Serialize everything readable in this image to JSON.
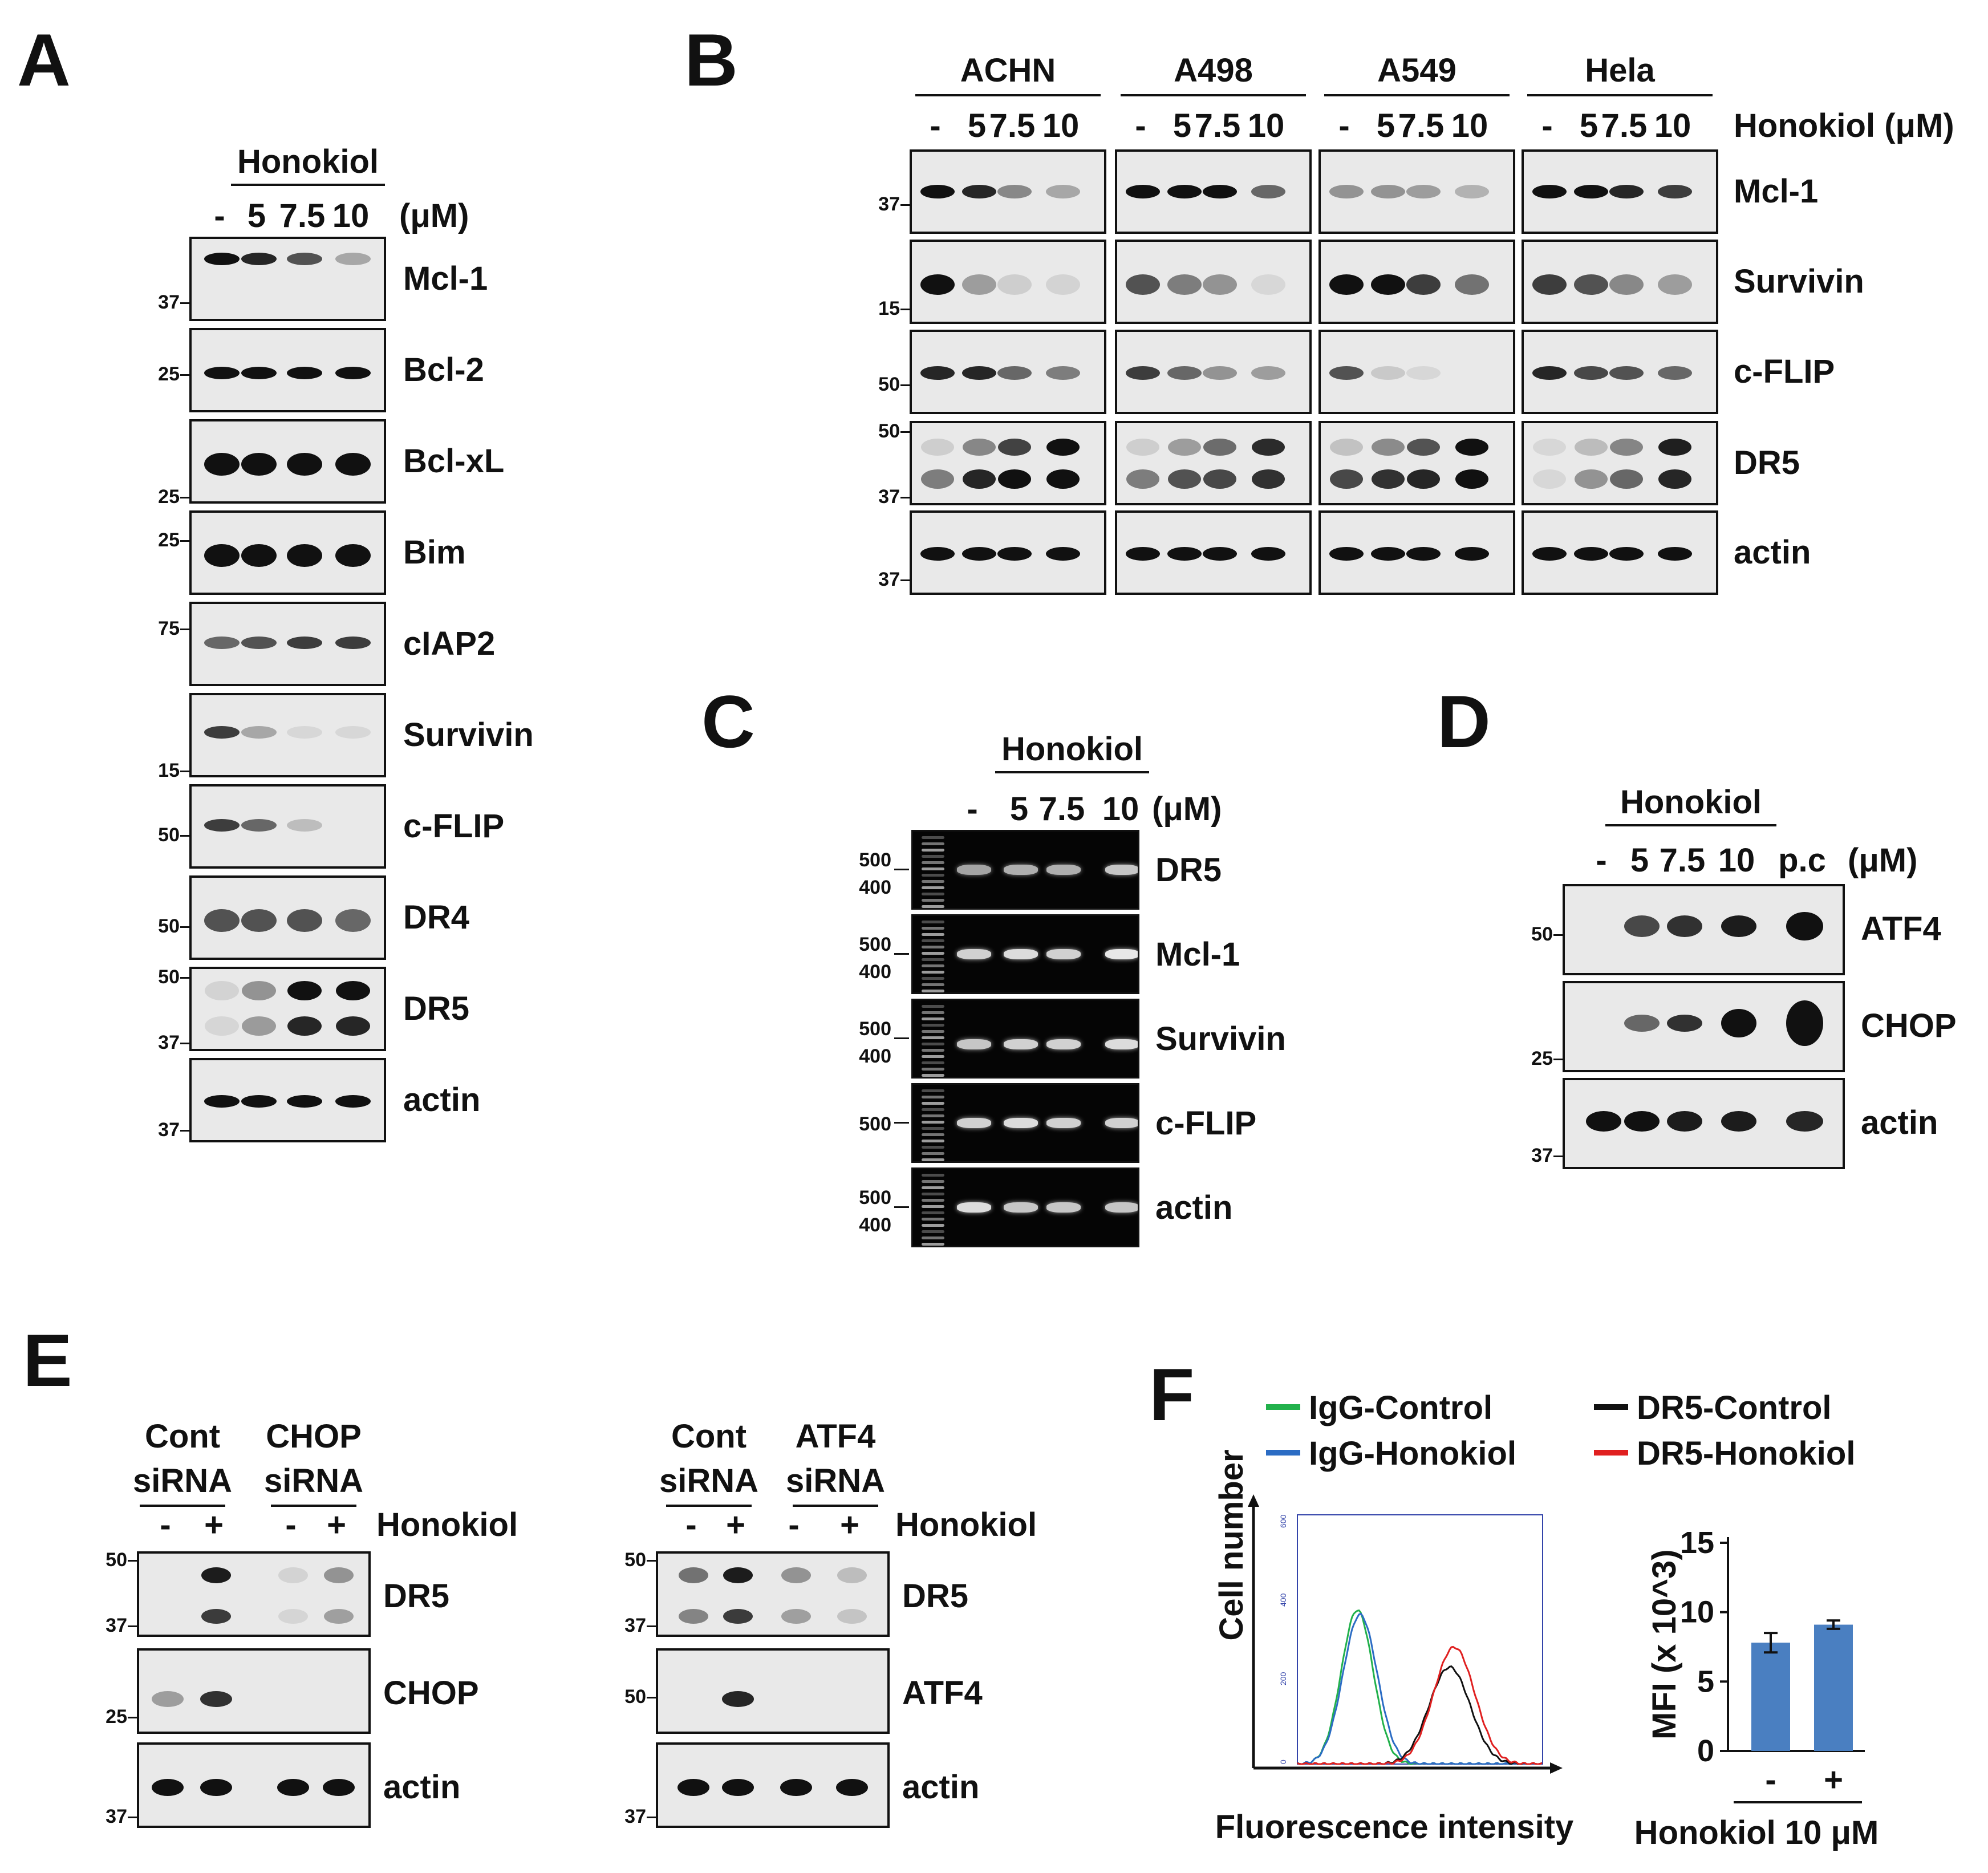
{
  "panels": {
    "a": "A",
    "b": "B",
    "c": "C",
    "d": "D",
    "e": "E",
    "f": "F"
  },
  "panelA": {
    "title": "Honokiol",
    "lanes": [
      "-",
      "5",
      "7.5",
      "10"
    ],
    "unit": "(μM)",
    "rows": [
      {
        "name": "Mcl-1",
        "mw": [
          "37"
        ],
        "bands": [
          1,
          0.9,
          0.7,
          0.3
        ]
      },
      {
        "name": "Bcl-2",
        "mw": [
          "25"
        ],
        "bands": [
          1,
          1,
          1,
          1
        ]
      },
      {
        "name": "Bcl-xL",
        "mw": [
          "25"
        ],
        "bands": [
          1,
          1,
          1,
          1
        ]
      },
      {
        "name": "Bim",
        "mw": [
          "25"
        ],
        "bands": [
          1,
          1,
          1,
          1
        ]
      },
      {
        "name": "cIAP2",
        "mw": [
          "75"
        ],
        "bands": [
          0.6,
          0.7,
          0.8,
          0.8
        ]
      },
      {
        "name": "Survivin",
        "mw": [
          "15"
        ],
        "bands": [
          0.8,
          0.3,
          0.05,
          0.05
        ]
      },
      {
        "name": "c-FLIP",
        "mw": [
          "50"
        ],
        "bands": [
          0.8,
          0.6,
          0.2,
          0
        ]
      },
      {
        "name": "DR4",
        "mw": [
          "50"
        ],
        "bands": [
          0.7,
          0.7,
          0.7,
          0.6
        ]
      },
      {
        "name": "DR5",
        "mw": [
          "50",
          "37"
        ],
        "bands": [
          0.1,
          0.4,
          1,
          1
        ]
      },
      {
        "name": "actin",
        "mw": [
          "37"
        ],
        "bands": [
          1,
          1,
          1,
          1
        ]
      }
    ]
  },
  "panelB": {
    "cells": [
      "ACHN",
      "A498",
      "A549",
      "Hela"
    ],
    "lanes": [
      "-",
      "5",
      "7.5",
      "10"
    ],
    "unit": "Honokiol (μM)",
    "rows": [
      {
        "name": "Mcl-1",
        "mw": [
          "37"
        ]
      },
      {
        "name": "Survivin",
        "mw": [
          "15"
        ]
      },
      {
        "name": "c-FLIP",
        "mw": [
          "50"
        ]
      },
      {
        "name": "DR5",
        "mw": [
          "50",
          "37"
        ]
      },
      {
        "name": "actin",
        "mw": [
          "37"
        ]
      }
    ]
  },
  "panelC": {
    "title": "Honokiol",
    "lanes": [
      "-",
      "5",
      "7.5",
      "10"
    ],
    "unit": "(μM)",
    "rows": [
      {
        "name": "DR5",
        "mw": [
          "500",
          "400"
        ]
      },
      {
        "name": "Mcl-1",
        "mw": [
          "500",
          "400"
        ]
      },
      {
        "name": "Survivin",
        "mw": [
          "500",
          "400"
        ]
      },
      {
        "name": "c-FLIP",
        "mw": [
          "500"
        ]
      },
      {
        "name": "actin",
        "mw": [
          "500",
          "400"
        ]
      }
    ]
  },
  "panelD": {
    "title": "Honokiol",
    "lanes": [
      "-",
      "5",
      "7.5",
      "10",
      "p.c"
    ],
    "unit": "(μM)",
    "rows": [
      {
        "name": "ATF4",
        "mw": [
          "50"
        ]
      },
      {
        "name": "CHOP",
        "mw": [
          "25"
        ]
      },
      {
        "name": "actin",
        "mw": [
          "37"
        ]
      }
    ]
  },
  "panelE": {
    "left": {
      "groups": [
        "Cont siRNA",
        "CHOP siRNA"
      ],
      "group1a": "Cont",
      "group1b": "siRNA",
      "group2a": "CHOP",
      "group2b": "siRNA",
      "rows": [
        "DR5",
        "CHOP",
        "actin"
      ],
      "mw": [
        "50",
        "37",
        "25",
        "37"
      ]
    },
    "right": {
      "group1a": "Cont",
      "group1b": "siRNA",
      "group2a": "ATF4",
      "group2b": "siRNA",
      "rows": [
        "DR5",
        "ATF4",
        "actin"
      ],
      "mw": [
        "50",
        "37",
        "50",
        "37"
      ]
    },
    "signs": [
      "-",
      "+",
      "-",
      "+"
    ],
    "treat": "Honokiol"
  },
  "panelF": {
    "legend": [
      {
        "label": "IgG-Control",
        "color": "#22b14c"
      },
      {
        "label": "IgG-Honokiol",
        "color": "#2b6cc4"
      },
      {
        "label": "DR5-Control",
        "color": "#111111"
      },
      {
        "label": "DR5-Honokiol",
        "color": "#e02020"
      }
    ],
    "histogram": {
      "ylabel": "Cell number",
      "xlabel": "Fluorescence intensity",
      "yticks": [
        "0",
        "200",
        "400",
        "600"
      ]
    },
    "bar_chart_data": {
      "type": "bar",
      "categories": [
        "-",
        "+"
      ],
      "values": [
        7.8,
        9.1
      ],
      "errors": [
        0.7,
        0.3
      ],
      "ylim": [
        0,
        15
      ],
      "yticks": [
        "0",
        "5",
        "10",
        "15"
      ],
      "ylabel": "MFI (x 10^3)",
      "xlabel": "Honokiol 10 μM",
      "color": "#4a7fc1"
    }
  }
}
